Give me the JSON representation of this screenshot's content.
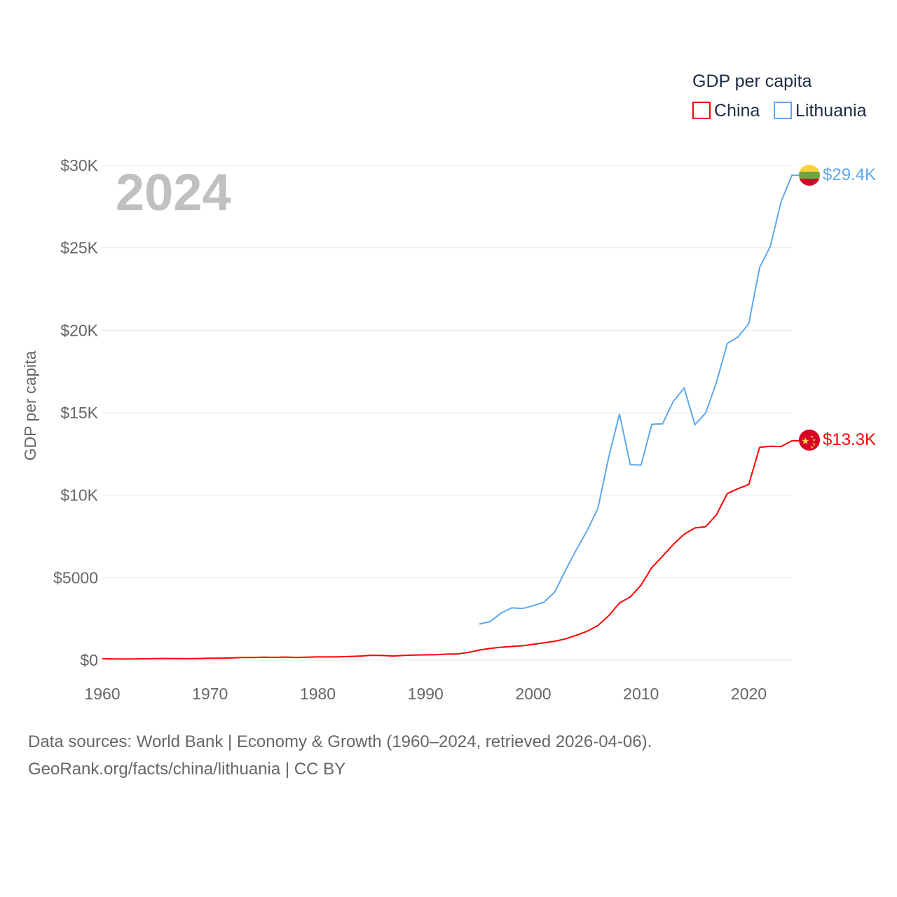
{
  "chart_data": {
    "type": "line",
    "year_label": "2024",
    "legend": {
      "title": "GDP per capita",
      "position": "top-right"
    },
    "ylabel": "GDP per capita",
    "xlabel": "",
    "xlim": [
      1960,
      2024
    ],
    "ylim": [
      0,
      30000
    ],
    "x_ticks": [
      "1960",
      "1970",
      "1980",
      "1990",
      "2000",
      "2010",
      "2020"
    ],
    "y_ticks": [
      {
        "value": 0,
        "label": "$0"
      },
      {
        "value": 5000,
        "label": "$5000"
      },
      {
        "value": 10000,
        "label": "$10K"
      },
      {
        "value": 15000,
        "label": "$15K"
      },
      {
        "value": 20000,
        "label": "$20K"
      },
      {
        "value": 25000,
        "label": "$25K"
      },
      {
        "value": 30000,
        "label": "$30K"
      }
    ],
    "grid": true,
    "series": [
      {
        "name": "China",
        "color": "#ff0000",
        "end_label": "$13.3K",
        "flag": "china-flag",
        "start_year": 1960,
        "values": [
          90,
          76,
          70,
          74,
          85,
          98,
          104,
          97,
          91,
          100,
          113,
          119,
          132,
          157,
          160,
          178,
          165,
          185,
          156,
          184,
          195,
          197,
          203,
          225,
          251,
          294,
          282,
          251,
          284,
          311,
          318,
          333,
          366,
          377,
          473,
          610,
          709,
          782,
          829,
          873,
          959,
          1053,
          1149,
          1289,
          1509,
          1753,
          2099,
          2694,
          3468,
          3832,
          4550,
          5614,
          6301,
          7020,
          7636,
          8016,
          8094,
          8817,
          10100,
          10400,
          10650,
          12900,
          12970,
          12950,
          13300
        ]
      },
      {
        "name": "Lithuania",
        "color": "#5ea8ee",
        "end_label": "$29.4K",
        "flag": "lithuania-flag",
        "start_year": 1995,
        "values": [
          2190,
          2340,
          2850,
          3170,
          3130,
          3300,
          3520,
          4140,
          5460,
          6700,
          7860,
          9220,
          12300,
          14930,
          11850,
          11830,
          14300,
          14330,
          15700,
          16500,
          14270,
          14990,
          16850,
          19200,
          19600,
          20400,
          23800,
          25100,
          27800,
          29400
        ]
      }
    ]
  },
  "footer": {
    "line1": "Data sources: World Bank | Economy & Growth (1960–2024, retrieved 2026-04-06).",
    "line2": "GeoRank.org/facts/china/lithuania | CC BY"
  }
}
